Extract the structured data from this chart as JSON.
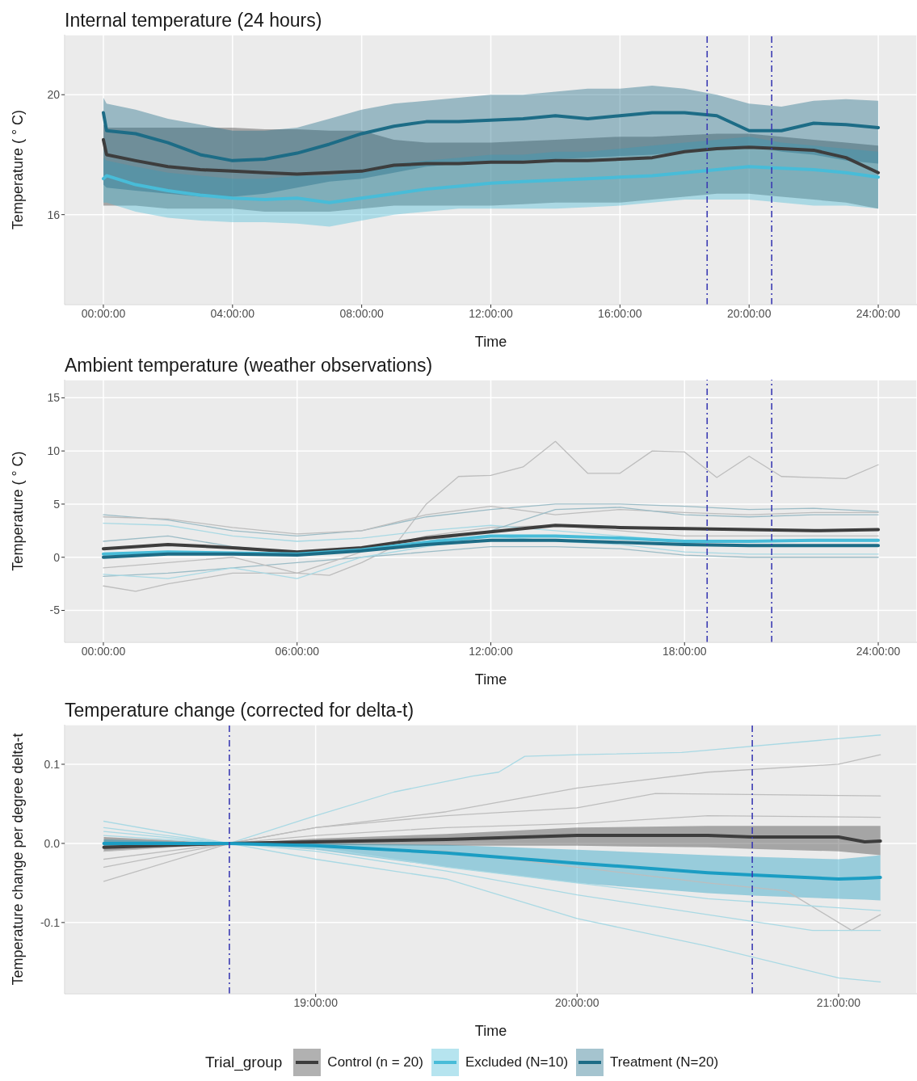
{
  "chart_data": [
    {
      "type": "line",
      "title": "Internal temperature (24 hours)",
      "xlabel": "Time",
      "ylabel": "Temperature ( ° C)",
      "legend_title": "Trial_group",
      "legend": "bottom",
      "grid": true,
      "xlim": [
        -1.2,
        25.2
      ],
      "ylim": [
        13,
        22
      ],
      "yticks": [
        16,
        20
      ],
      "xticks": [
        {
          "value": 0,
          "label": "00:00:00"
        },
        {
          "value": 4,
          "label": "04:00:00"
        },
        {
          "value": 8,
          "label": "08:00:00"
        },
        {
          "value": 12,
          "label": "12:00:00"
        },
        {
          "value": 16,
          "label": "16:00:00"
        },
        {
          "value": 20,
          "label": "20:00:00"
        },
        {
          "value": 24,
          "label": "24:00:00"
        }
      ],
      "ref_lines": [
        {
          "axis": "x",
          "value": 18.7,
          "color": "#3b3bb3",
          "line_style": "dashed"
        },
        {
          "axis": "x",
          "value": 20.7,
          "color": "#3b3bb3",
          "line_style": "dashed"
        }
      ],
      "x": [
        0,
        0.1,
        1,
        2,
        3,
        4,
        5,
        6,
        7,
        8,
        9,
        10,
        11,
        12,
        13,
        14,
        15,
        16,
        17,
        18,
        19,
        20,
        21,
        22,
        23,
        24
      ],
      "series": [
        {
          "name": "Control (n = 20)",
          "color": "#3d3d3d",
          "values": [
            18.5,
            18.0,
            17.8,
            17.6,
            17.5,
            17.45,
            17.4,
            17.35,
            17.4,
            17.45,
            17.65,
            17.7,
            17.7,
            17.75,
            17.75,
            17.8,
            17.8,
            17.85,
            17.9,
            18.1,
            18.2,
            18.25,
            18.2,
            18.15,
            17.9,
            17.4
          ],
          "upper": [
            19.0,
            18.9,
            18.9,
            18.9,
            18.9,
            18.9,
            18.85,
            18.85,
            18.8,
            18.8,
            18.5,
            18.4,
            18.4,
            18.4,
            18.45,
            18.5,
            18.55,
            18.6,
            18.6,
            18.65,
            18.7,
            18.7,
            18.6,
            18.5,
            18.4,
            18.3
          ],
          "lower": [
            16.3,
            16.3,
            16.3,
            16.2,
            16.2,
            16.2,
            16.1,
            16.1,
            16.1,
            16.2,
            16.3,
            16.3,
            16.3,
            16.3,
            16.35,
            16.4,
            16.4,
            16.4,
            16.5,
            16.6,
            16.7,
            16.7,
            16.6,
            16.5,
            16.4,
            16.2
          ]
        },
        {
          "name": "Excluded (N=10)",
          "color": "#48bcd8",
          "values": [
            17.2,
            17.3,
            17.0,
            16.8,
            16.65,
            16.55,
            16.5,
            16.55,
            16.4,
            16.55,
            16.7,
            16.85,
            16.95,
            17.05,
            17.1,
            17.15,
            17.2,
            17.25,
            17.3,
            17.4,
            17.5,
            17.6,
            17.55,
            17.5,
            17.4,
            17.25
          ],
          "upper": [
            17.9,
            17.8,
            17.6,
            17.4,
            17.3,
            17.2,
            17.2,
            17.3,
            17.3,
            17.5,
            17.7,
            17.8,
            17.9,
            18.0,
            18.0,
            18.1,
            18.1,
            18.2,
            18.3,
            18.4,
            18.5,
            18.6,
            18.4,
            18.3,
            18.2,
            18.1
          ],
          "lower": [
            16.4,
            16.4,
            16.1,
            15.9,
            15.8,
            15.75,
            15.75,
            15.7,
            15.6,
            15.8,
            16.0,
            16.1,
            16.2,
            16.2,
            16.2,
            16.2,
            16.25,
            16.3,
            16.4,
            16.5,
            16.5,
            16.5,
            16.4,
            16.3,
            16.3,
            16.2
          ]
        },
        {
          "name": "Treatment (N=20)",
          "color": "#1d6c86",
          "values": [
            19.4,
            18.8,
            18.7,
            18.4,
            18.0,
            17.8,
            17.85,
            18.05,
            18.35,
            18.7,
            18.95,
            19.1,
            19.1,
            19.15,
            19.2,
            19.3,
            19.2,
            19.3,
            19.4,
            19.4,
            19.3,
            18.8,
            18.8,
            19.05,
            19.0,
            18.9
          ],
          "upper": [
            19.9,
            19.7,
            19.5,
            19.2,
            19.0,
            18.8,
            18.8,
            18.9,
            19.2,
            19.5,
            19.7,
            19.8,
            19.9,
            20.0,
            20.0,
            20.1,
            20.2,
            20.2,
            20.3,
            20.2,
            20.0,
            19.7,
            19.6,
            19.8,
            19.85,
            19.8
          ],
          "lower": [
            17.0,
            16.9,
            16.8,
            16.7,
            16.6,
            16.6,
            16.7,
            16.9,
            17.1,
            17.2,
            17.4,
            17.6,
            17.7,
            17.75,
            17.8,
            17.85,
            17.9,
            17.95,
            18.0,
            18.1,
            18.2,
            18.3,
            18.1,
            18.0,
            17.8,
            17.7
          ]
        }
      ]
    },
    {
      "type": "line",
      "title": "Ambient temperature (weather observations)",
      "xlabel": "Time",
      "ylabel": "Temperature ( ° C)",
      "grid": true,
      "xlim": [
        -1.2,
        25.2
      ],
      "ylim": [
        -8,
        16.7
      ],
      "yticks": [
        -5,
        0,
        5,
        10,
        15
      ],
      "xticks": [
        {
          "value": 0,
          "label": "00:00:00"
        },
        {
          "value": 6,
          "label": "06:00:00"
        },
        {
          "value": 12,
          "label": "12:00:00"
        },
        {
          "value": 18,
          "label": "18:00:00"
        },
        {
          "value": 24,
          "label": "24:00:00"
        }
      ],
      "ref_lines": [
        {
          "axis": "x",
          "value": 18.7,
          "color": "#3b3bb3",
          "line_style": "dashed"
        },
        {
          "axis": "x",
          "value": 20.7,
          "color": "#3b3bb3",
          "line_style": "dashed"
        }
      ],
      "x": [
        0,
        2,
        4,
        6,
        8,
        10,
        12,
        14,
        16,
        18,
        20,
        22,
        24
      ],
      "series": [
        {
          "color": "#bdbdbd",
          "x": [
            0,
            1,
            2,
            3,
            4,
            5,
            6,
            7,
            8,
            9,
            10,
            11,
            12,
            13,
            14,
            15,
            16,
            17,
            18,
            19,
            20,
            21,
            22,
            23,
            24
          ],
          "values": [
            -2.7,
            -3.2,
            -2.5,
            -2,
            -1.5,
            -1.5,
            -1.5,
            -1.7,
            -0.5,
            1,
            5,
            7.6,
            7.7,
            8.5,
            10.9,
            7.9,
            7.9,
            10,
            9.9,
            7.5,
            9.5,
            7.6,
            7.5,
            7.4,
            8.7
          ]
        },
        {
          "color": "#9cbcc6",
          "values": [
            4.0,
            3.5,
            2.5,
            2.0,
            2.5,
            3.8,
            4.5,
            5.0,
            5.0,
            4.8,
            4.5,
            4.6,
            4.3
          ]
        },
        {
          "color": "#9cbcc6",
          "values": [
            -1.8,
            -1.5,
            -1.0,
            -0.5,
            0.0,
            0.5,
            1.0,
            1.0,
            0.8,
            0.2,
            0.0,
            0.0,
            0.0
          ]
        },
        {
          "color": "#bdbdbd",
          "values": [
            3.8,
            3.6,
            2.8,
            2.2,
            2.5,
            4.0,
            4.8,
            4.0,
            4.5,
            4.2,
            4.0,
            4.2,
            4.2
          ]
        },
        {
          "color": "#bdbdbd",
          "values": [
            -1.0,
            -0.5,
            0.0,
            -1.5,
            0.5,
            2.0,
            2.8,
            3.0,
            2.5,
            2.0,
            2.0,
            2.0,
            2.0
          ]
        },
        {
          "color": "#a9d9e4",
          "values": [
            -1.6,
            -2.0,
            -1.0,
            -2.0,
            0.0,
            1.0,
            2.0,
            1.5,
            1.2,
            0.5,
            0.3,
            0.3,
            0.3
          ]
        },
        {
          "color": "#a9d9e4",
          "values": [
            3.2,
            3.0,
            2.0,
            1.5,
            1.8,
            2.5,
            3.0,
            2.5,
            2.0,
            1.5,
            1.5,
            1.5,
            1.5
          ]
        },
        {
          "color": "#9cbcc6",
          "values": [
            1.5,
            2.0,
            1.0,
            0.5,
            0.8,
            1.5,
            2.5,
            4.5,
            4.7,
            4.0,
            3.8,
            4.0,
            4.0
          ]
        },
        {
          "color": "#3d3d3d",
          "values": [
            0.8,
            1.2,
            0.9,
            0.5,
            0.9,
            1.8,
            2.4,
            3.0,
            2.8,
            2.7,
            2.6,
            2.5,
            2.6
          ]
        },
        {
          "color": "#48bcd8",
          "values": [
            0.3,
            0.5,
            0.4,
            0.3,
            0.7,
            1.4,
            2.0,
            2.0,
            1.8,
            1.5,
            1.5,
            1.6,
            1.6
          ]
        },
        {
          "color": "#1d6c86",
          "values": [
            0.0,
            0.3,
            0.3,
            0.2,
            0.6,
            1.2,
            1.6,
            1.6,
            1.4,
            1.2,
            1.1,
            1.1,
            1.1
          ]
        }
      ]
    },
    {
      "type": "line",
      "title": "Temperature change (corrected for delta-t)",
      "xlabel": "Time",
      "ylabel": "Temperature change per degree delta-t",
      "grid": true,
      "xlim": [
        18.04,
        21.3
      ],
      "ylim": [
        -0.19,
        0.15
      ],
      "yticks": [
        -0.1,
        {
          "value": 0,
          "label": "0.0"
        },
        0.1
      ],
      "xticks": [
        {
          "value": 19,
          "label": "19:00:00"
        },
        {
          "value": 20,
          "label": "20:00:00"
        },
        {
          "value": 21,
          "label": "21:00:00"
        }
      ],
      "ref_lines": [
        {
          "axis": "x",
          "value": 18.67,
          "color": "#3b3bb3",
          "line_style": "dashed"
        },
        {
          "axis": "x",
          "value": 20.67,
          "color": "#3b3bb3",
          "line_style": "dashed"
        }
      ],
      "x": [
        18.19,
        18.67,
        19,
        19.5,
        20,
        20.5,
        20.67,
        21,
        21.1,
        21.16
      ],
      "series": [
        {
          "color": "#a9d9e4",
          "x": [
            18.19,
            18.67,
            19,
            19.3,
            19.6,
            19.7,
            19.8,
            20,
            20.4,
            21.16
          ],
          "values": [
            0.028,
            0,
            0.035,
            0.065,
            0.085,
            0.09,
            0.11,
            0.112,
            0.115,
            0.137
          ]
        },
        {
          "color": "#a9d9e4",
          "x": [
            18.19,
            18.67,
            19,
            19.5,
            20,
            20.5,
            21,
            21.16
          ],
          "values": [
            0.015,
            0,
            -0.02,
            -0.045,
            -0.095,
            -0.13,
            -0.17,
            -0.175
          ]
        },
        {
          "color": "#bdbdbd",
          "x": [
            18.19,
            18.67,
            19,
            19.5,
            20,
            20.5,
            21,
            21.16
          ],
          "values": [
            -0.048,
            0,
            0.02,
            0.04,
            0.07,
            0.09,
            0.1,
            0.112
          ]
        },
        {
          "color": "#bdbdbd",
          "x": [
            18.19,
            18.67,
            19.5,
            20,
            20.5,
            20.8,
            21.05,
            21.16
          ],
          "values": [
            -0.03,
            0,
            -0.01,
            -0.03,
            -0.05,
            -0.06,
            -0.11,
            -0.09
          ]
        },
        {
          "color": "#bdbdbd",
          "x": [
            18.19,
            18.67,
            19,
            19.5,
            20,
            20.3,
            21.16
          ],
          "values": [
            -0.02,
            0,
            0.02,
            0.035,
            0.045,
            0.063,
            0.06
          ]
        },
        {
          "color": "#a9d9e4",
          "x": [
            18.19,
            18.67,
            19,
            19.5,
            20,
            20.5,
            20.9,
            21.16
          ],
          "values": [
            0.01,
            0,
            -0.01,
            -0.035,
            -0.065,
            -0.09,
            -0.11,
            -0.11
          ]
        },
        {
          "color": "#bdbdbd",
          "x": [
            18.19,
            18.67,
            19,
            19.5,
            20,
            20.5,
            21.16
          ],
          "values": [
            -0.01,
            0,
            0.01,
            0.02,
            0.025,
            0.035,
            0.033
          ]
        },
        {
          "color": "#a9d9e4",
          "x": [
            18.19,
            18.67,
            19,
            19.5,
            20,
            20.5,
            21.16
          ],
          "values": [
            0.02,
            0,
            -0.005,
            -0.03,
            -0.05,
            -0.07,
            -0.085
          ]
        },
        {
          "color": "#3d3d3d",
          "values": [
            -0.005,
            0,
            0.002,
            0.005,
            0.01,
            0.01,
            0.008,
            0.008,
            0.002,
            0.003
          ],
          "upper": [
            0.008,
            0,
            0.006,
            0.012,
            0.02,
            0.022,
            0.022,
            0.022,
            0.022,
            0.022
          ],
          "lower": [
            -0.01,
            0,
            -0.002,
            -0.003,
            -0.003,
            -0.005,
            -0.007,
            -0.01,
            -0.013,
            -0.015
          ]
        },
        {
          "color": "#1b9dc3",
          "values": [
            0.0,
            0,
            -0.003,
            -0.012,
            -0.025,
            -0.037,
            -0.04,
            -0.045,
            -0.044,
            -0.043
          ],
          "upper": [
            0.005,
            0,
            0.0,
            -0.002,
            -0.008,
            -0.015,
            -0.017,
            -0.02,
            -0.017,
            -0.015
          ],
          "lower": [
            -0.005,
            0,
            -0.008,
            -0.03,
            -0.05,
            -0.063,
            -0.066,
            -0.07,
            -0.071,
            -0.072
          ]
        }
      ]
    }
  ]
}
